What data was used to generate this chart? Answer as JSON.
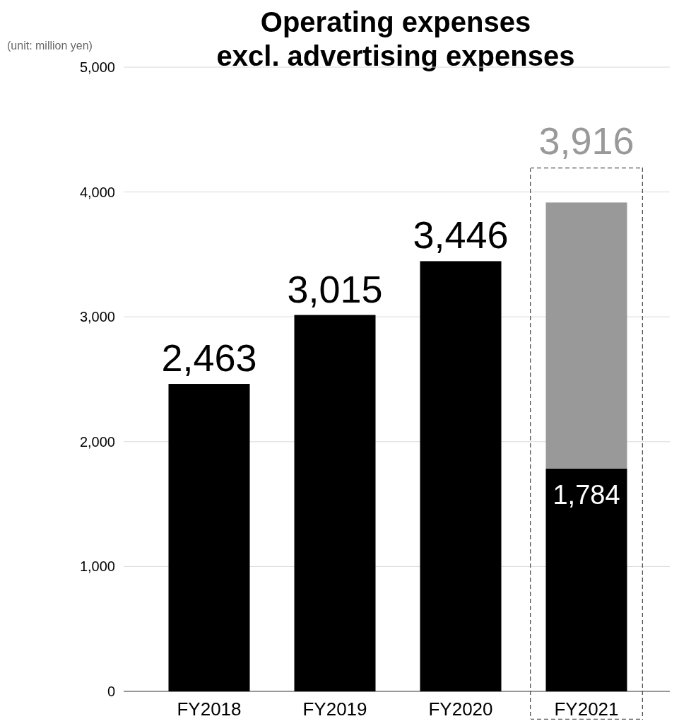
{
  "chart_data": {
    "type": "bar",
    "title": "Operating expenses\nexcl. advertising expenses",
    "annotations": [
      "(unit: million yen)"
    ],
    "categories": [
      "FY2018",
      "FY2019",
      "FY2020",
      "FY2021"
    ],
    "stacked": true,
    "series": [
      {
        "color": "#000000",
        "values": [
          2463,
          3015,
          3446,
          1784
        ],
        "value_labels": [
          null,
          null,
          null,
          "1,784"
        ]
      },
      {
        "color": "#999999",
        "values": [
          null,
          null,
          null,
          2132
        ]
      }
    ],
    "totals": [
      "2,463",
      "3,015",
      "3,446",
      "3,916"
    ],
    "ylim": [
      0,
      5000
    ],
    "yticks": [
      {
        "value": 0,
        "label": "0"
      },
      {
        "value": 1000,
        "label": "1,000"
      },
      {
        "value": 2000,
        "label": "2,000"
      },
      {
        "value": 3000,
        "label": "3,000"
      },
      {
        "value": 4000,
        "label": "4,000"
      },
      {
        "value": 5000,
        "label": "5,000"
      }
    ],
    "grid": "y"
  }
}
